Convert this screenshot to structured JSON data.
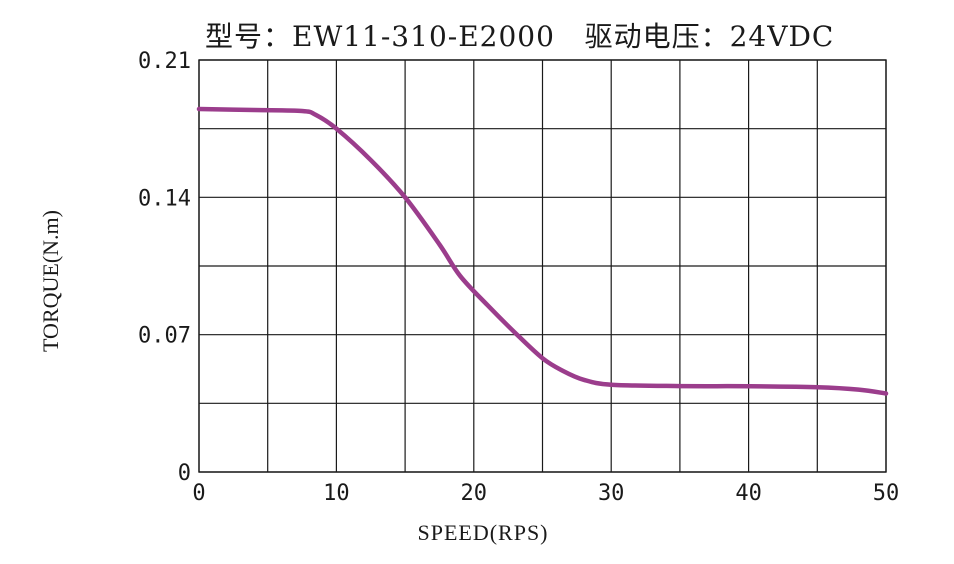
{
  "chart_data": {
    "type": "line",
    "title": "型号：EW11-310-E2000   驱动电压：24VDC",
    "xlabel": "SPEED(RPS)",
    "ylabel": "TORQUE(N.m)",
    "xlim": [
      0,
      50
    ],
    "ylim": [
      0,
      0.21
    ],
    "x_ticks": [
      0,
      10,
      20,
      30,
      40,
      50
    ],
    "x_tick_labels": [
      "0",
      "10",
      "20",
      "30",
      "40",
      "50"
    ],
    "y_ticks": [
      0,
      0.07,
      0.14,
      0.21
    ],
    "y_tick_labels": [
      "0",
      "0.07",
      "0.14",
      "0.21"
    ],
    "x_grid": [
      0,
      5,
      10,
      15,
      20,
      25,
      30,
      35,
      40,
      45,
      50
    ],
    "y_grid": [
      0,
      0.035,
      0.07,
      0.105,
      0.14,
      0.175,
      0.21
    ],
    "grid": true,
    "series": [
      {
        "color": "#9b3d8c",
        "x": [
          0,
          4,
          7.5,
          8.5,
          10,
          12.5,
          15,
          17.5,
          19,
          21,
          23,
          25,
          26.5,
          28,
          30,
          35,
          40,
          45,
          48,
          50
        ],
        "y": [
          0.185,
          0.1845,
          0.184,
          0.182,
          0.175,
          0.159,
          0.14,
          0.116,
          0.1,
          0.085,
          0.071,
          0.058,
          0.0515,
          0.047,
          0.0445,
          0.0438,
          0.0437,
          0.0432,
          0.042,
          0.04
        ]
      }
    ]
  }
}
